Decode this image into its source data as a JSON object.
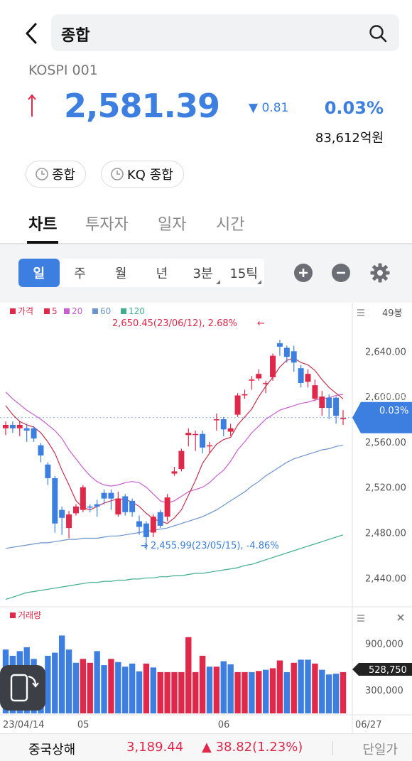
{
  "header": {
    "search_text": "종합"
  },
  "quote": {
    "code": "KOSPI 001",
    "price": "2,581.39",
    "change": "▼ 0.81",
    "percent": "0.03%",
    "amount": "83,612억원"
  },
  "chips": [
    {
      "label": "종합"
    },
    {
      "label": "KQ 종합"
    }
  ],
  "tabs": [
    {
      "label": "차트"
    },
    {
      "label": "투자자"
    },
    {
      "label": "일자"
    },
    {
      "label": "시간"
    }
  ],
  "periods": [
    {
      "label": "일"
    },
    {
      "label": "주"
    },
    {
      "label": "월"
    },
    {
      "label": "년"
    },
    {
      "label": "3분"
    },
    {
      "label": "15틱"
    }
  ],
  "controls": {
    "plus_icon": "plus-circle-icon",
    "minus_icon": "minus-circle-icon",
    "settings_icon": "gear-icon"
  },
  "colors": {
    "accent_blue": "#3d7fe0",
    "up_red": "#e0294a",
    "ma5": "#c7324e",
    "ma20": "#c85fd0",
    "ma60": "#6b94cf",
    "ma120": "#3fae8e"
  },
  "chart_data": {
    "type": "candlestick",
    "legend": [
      {
        "name": "가격",
        "color": "#e0294a"
      },
      {
        "name": "5",
        "color": "#e0294a"
      },
      {
        "name": "20",
        "color": "#c85fd0"
      },
      {
        "name": "60",
        "color": "#6b94cf"
      },
      {
        "name": "120",
        "color": "#3fae8e"
      }
    ],
    "candles_label": "49봉",
    "y_ticks": [
      "2,640.00",
      "2,600.00",
      "2,560.00",
      "2,520.00",
      "2,480.00",
      "2,440.00"
    ],
    "y_tick_values": [
      2640,
      2600,
      2560,
      2520,
      2480,
      2440
    ],
    "ylim": [
      2417,
      2664
    ],
    "high_annotation": "2,650.45(23/06/12), 2.68%",
    "low_annotation": "2,455.99(23/05/15), -4.86%",
    "current_price": "2,581.39",
    "current_pct": "0.03%",
    "x_labels": [
      "23/04/14",
      "05",
      "06",
      "06/27"
    ],
    "x_label_index": [
      0,
      11,
      31,
      48
    ],
    "candles": [
      [
        2572,
        2575,
        2566,
        2578
      ],
      [
        2575,
        2572,
        2568,
        2578
      ],
      [
        2572,
        2575,
        2565,
        2578
      ],
      [
        2572,
        2570,
        2560,
        2576
      ],
      [
        2572,
        2563,
        2560,
        2574
      ],
      [
        2557,
        2548,
        2542,
        2559
      ],
      [
        2540,
        2528,
        2522,
        2542
      ],
      [
        2528,
        2488,
        2480,
        2530
      ],
      [
        2500,
        2493,
        2478,
        2503
      ],
      [
        2484,
        2496,
        2475,
        2499
      ],
      [
        2497,
        2503,
        2495,
        2505
      ],
      [
        2500,
        2520,
        2498,
        2522
      ],
      [
        2503,
        2502,
        2498,
        2505
      ],
      [
        2505,
        2503,
        2494,
        2509
      ],
      [
        2515,
        2510,
        2505,
        2518
      ],
      [
        2515,
        2510,
        2500,
        2518
      ],
      [
        2496,
        2510,
        2494,
        2516
      ],
      [
        2512,
        2498,
        2495,
        2514
      ],
      [
        2508,
        2498,
        2494,
        2510
      ],
      [
        2490,
        2485,
        2478,
        2495
      ],
      [
        2488,
        2476,
        2465,
        2490
      ],
      [
        2480,
        2494,
        2476,
        2496
      ],
      [
        2498,
        2486,
        2484,
        2500
      ],
      [
        2494,
        2511,
        2490,
        2514
      ],
      [
        2532,
        2534,
        2530,
        2538
      ],
      [
        2536,
        2552,
        2534,
        2554
      ],
      [
        2566,
        2568,
        2556,
        2572
      ],
      [
        2566,
        2567,
        2552,
        2570
      ],
      [
        2567,
        2555,
        2550,
        2570
      ],
      [
        2556,
        2557,
        2550,
        2560
      ],
      [
        2579,
        2580,
        2570,
        2585
      ],
      [
        2580,
        2571,
        2565,
        2582
      ],
      [
        2569,
        2572,
        2565,
        2576
      ],
      [
        2584,
        2601,
        2582,
        2603
      ],
      [
        2601,
        2602,
        2598,
        2606
      ],
      [
        2614,
        2615,
        2606,
        2618
      ],
      [
        2616,
        2620,
        2614,
        2624
      ],
      [
        2612,
        2612,
        2603,
        2614
      ],
      [
        2617,
        2636,
        2614,
        2638
      ],
      [
        2647,
        2644,
        2636,
        2650
      ],
      [
        2643,
        2635,
        2630,
        2645
      ],
      [
        2640,
        2630,
        2622,
        2645
      ],
      [
        2625,
        2612,
        2608,
        2628
      ],
      [
        2613,
        2620,
        2608,
        2624
      ],
      [
        2598,
        2610,
        2596,
        2615
      ],
      [
        2590,
        2600,
        2583,
        2605
      ],
      [
        2599,
        2590,
        2580,
        2602
      ],
      [
        2599,
        2583,
        2576,
        2600
      ],
      [
        2580,
        2581,
        2575,
        2588
      ]
    ],
    "ma5": [
      2592,
      2584,
      2578,
      2575,
      2573,
      2568,
      2560,
      2550,
      2535,
      2522,
      2508,
      2502,
      2500,
      2503,
      2506,
      2508,
      2510,
      2509,
      2507,
      2503,
      2497,
      2492,
      2490,
      2488,
      2493,
      2500,
      2513,
      2526,
      2541,
      2550,
      2558,
      2562,
      2564,
      2575,
      2582,
      2589,
      2600,
      2609,
      2617,
      2626,
      2632,
      2634,
      2630,
      2628,
      2623,
      2615,
      2608,
      2603,
      2598
    ],
    "ma20": [
      2604,
      2598,
      2593,
      2588,
      2584,
      2580,
      2575,
      2570,
      2563,
      2553,
      2545,
      2537,
      2530,
      2525,
      2522,
      2521,
      2522,
      2524,
      2525,
      2524,
      2520,
      2514,
      2508,
      2506,
      2508,
      2512,
      2516,
      2518,
      2520,
      2524,
      2530,
      2535,
      2543,
      2553,
      2560,
      2568,
      2574,
      2580,
      2584,
      2588,
      2590,
      2592,
      2594,
      2595,
      2597,
      2598,
      2599,
      2601,
      2602
    ],
    "ma60": [
      2466,
      2467,
      2468,
      2469,
      2470,
      2471,
      2471,
      2472,
      2473,
      2474,
      2474,
      2475,
      2475,
      2475,
      2476,
      2477,
      2477,
      2478,
      2479,
      2480,
      2481,
      2482,
      2483,
      2484,
      2486,
      2488,
      2490,
      2492,
      2494,
      2497,
      2500,
      2504,
      2508,
      2512,
      2516,
      2521,
      2525,
      2530,
      2534,
      2538,
      2542,
      2545,
      2547,
      2549,
      2551,
      2553,
      2554,
      2556,
      2557
    ],
    "ma120": [
      2421,
      2423,
      2425,
      2427,
      2428,
      2429,
      2430,
      2431,
      2432,
      2433,
      2434,
      2435,
      2436,
      2436,
      2437,
      2437,
      2438,
      2438,
      2439,
      2439,
      2440,
      2440,
      2441,
      2441,
      2442,
      2442,
      2443,
      2444,
      2444,
      2445,
      2446,
      2447,
      2448,
      2449,
      2451,
      2452,
      2454,
      2456,
      2458,
      2460,
      2462,
      2464,
      2466,
      2468,
      2470,
      2472,
      2474,
      2476,
      2478
    ]
  },
  "volume_data": {
    "label": "거래량",
    "y_ticks": [
      "900,000",
      "300,000"
    ],
    "y_tick_values": [
      900000,
      300000
    ],
    "ylim": [
      0,
      1150000
    ],
    "current": "528,750",
    "bars": [
      [
        820000,
        "b"
      ],
      [
        740000,
        "b"
      ],
      [
        800000,
        "b"
      ],
      [
        850000,
        "b"
      ],
      [
        700000,
        "b"
      ],
      [
        560000,
        "b"
      ],
      [
        740000,
        "b"
      ],
      [
        780000,
        "b"
      ],
      [
        1000000,
        "b"
      ],
      [
        820000,
        "b"
      ],
      [
        650000,
        "b"
      ],
      [
        700000,
        "r"
      ],
      [
        650000,
        "r"
      ],
      [
        800000,
        "b"
      ],
      [
        620000,
        "b"
      ],
      [
        700000,
        "r"
      ],
      [
        660000,
        "b"
      ],
      [
        600000,
        "b"
      ],
      [
        640000,
        "b"
      ],
      [
        540000,
        "b"
      ],
      [
        640000,
        "r"
      ],
      [
        590000,
        "b"
      ],
      [
        530000,
        "r"
      ],
      [
        530000,
        "r"
      ],
      [
        530000,
        "r"
      ],
      [
        530000,
        "r"
      ],
      [
        980000,
        "r"
      ],
      [
        530000,
        "r"
      ],
      [
        740000,
        "r"
      ],
      [
        600000,
        "b"
      ],
      [
        600000,
        "r"
      ],
      [
        670000,
        "b"
      ],
      [
        630000,
        "b"
      ],
      [
        530000,
        "r"
      ],
      [
        530000,
        "r"
      ],
      [
        530000,
        "b"
      ],
      [
        545000,
        "r"
      ],
      [
        560000,
        "b"
      ],
      [
        580000,
        "r"
      ],
      [
        680000,
        "r"
      ],
      [
        530000,
        "b"
      ],
      [
        650000,
        "r"
      ],
      [
        690000,
        "b"
      ],
      [
        690000,
        "b"
      ],
      [
        640000,
        "r"
      ],
      [
        560000,
        "b"
      ],
      [
        500000,
        "b"
      ],
      [
        510000,
        "b"
      ],
      [
        530000,
        "r"
      ]
    ]
  },
  "bottom": {
    "name": "중국상해",
    "value": "3,189.44",
    "change": "▲ 38.82(1.23%)",
    "unit": "단일가"
  }
}
